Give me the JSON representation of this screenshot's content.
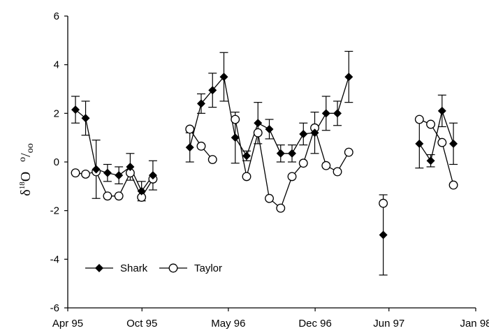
{
  "chart_data": {
    "type": "scatter",
    "ylabel": {
      "delta": "δ",
      "sup": "18",
      "element": "O",
      "unit_o1": "o",
      "unit_slash": "/",
      "unit_o2": "oo"
    },
    "ylim": [
      -6,
      6
    ],
    "y_ticks": [
      6,
      4,
      2,
      0,
      -2,
      -4,
      -6
    ],
    "x_range": [
      "1995-04-01",
      "1998-01-01"
    ],
    "x_ticks": [
      {
        "label": "Apr 95",
        "date": "1995-04-01"
      },
      {
        "label": "Oct 95",
        "date": "1995-10-01"
      },
      {
        "label": "May 96",
        "date": "1996-05-01"
      },
      {
        "label": "Dec 96",
        "date": "1996-12-01"
      },
      {
        "label": "Jun 97",
        "date": "1997-06-01"
      },
      {
        "label": "Jan 98",
        "date": "1998-01-01"
      }
    ],
    "legend_position": "bottom-left",
    "series": [
      {
        "name": "Shark",
        "marker": "filled-diamond",
        "segments": [
          [
            {
              "x": "1995-04-20",
              "y": 2.15,
              "err": 0.55
            },
            {
              "x": "1995-05-15",
              "y": 1.8,
              "err": 0.7
            },
            {
              "x": "1995-06-10",
              "y": -0.3,
              "err": 1.2
            },
            {
              "x": "1995-07-08",
              "y": -0.45,
              "err": 0.35
            },
            {
              "x": "1995-08-05",
              "y": -0.55,
              "err": 0.35
            },
            {
              "x": "1995-09-02",
              "y": -0.2,
              "err": 0.55
            },
            {
              "x": "1995-09-30",
              "y": -1.2,
              "err": 0.4
            },
            {
              "x": "1995-10-28",
              "y": -0.55,
              "err": 0.6
            }
          ],
          [
            {
              "x": "1996-01-27",
              "y": 0.6,
              "err": 0.6
            },
            {
              "x": "1996-02-24",
              "y": 2.4,
              "err": 0.4
            },
            {
              "x": "1996-03-23",
              "y": 2.95,
              "err": 0.7
            },
            {
              "x": "1996-04-20",
              "y": 3.5,
              "err": 1.0
            },
            {
              "x": "1996-05-18",
              "y": 1.0,
              "err": 1.05
            },
            {
              "x": "1996-06-15",
              "y": 0.25,
              "err": 0.2
            },
            {
              "x": "1996-07-13",
              "y": 1.6,
              "err": 0.85
            },
            {
              "x": "1996-08-10",
              "y": 1.35,
              "err": 0.4
            },
            {
              "x": "1996-09-07",
              "y": 0.35,
              "err": 0.35
            },
            {
              "x": "1996-10-05",
              "y": 0.35,
              "err": 0.35
            },
            {
              "x": "1996-11-02",
              "y": 1.15,
              "err": 0.45
            },
            {
              "x": "1996-11-30",
              "y": 1.2,
              "err": 0.85
            },
            {
              "x": "1996-12-28",
              "y": 2.0,
              "err": 0.7
            },
            {
              "x": "1997-01-25",
              "y": 2.0,
              "err": 0.5
            },
            {
              "x": "1997-02-22",
              "y": 3.5,
              "err": 1.05
            }
          ],
          [
            {
              "x": "1997-05-18",
              "y": -3.0,
              "err": 1.65
            }
          ],
          [
            {
              "x": "1997-08-15",
              "y": 0.75,
              "err": 1.0
            },
            {
              "x": "1997-09-12",
              "y": 0.05,
              "err": 0.25
            },
            {
              "x": "1997-10-10",
              "y": 2.1,
              "err": 0.65
            },
            {
              "x": "1997-11-07",
              "y": 0.75,
              "err": 0.85
            }
          ]
        ]
      },
      {
        "name": "Taylor",
        "marker": "open-circle",
        "segments": [
          [
            {
              "x": "1995-04-20",
              "y": -0.45
            },
            {
              "x": "1995-05-15",
              "y": -0.5
            },
            {
              "x": "1995-06-10",
              "y": -0.4
            },
            {
              "x": "1995-07-08",
              "y": -1.4
            },
            {
              "x": "1995-08-05",
              "y": -1.4
            },
            {
              "x": "1995-09-02",
              "y": -0.45
            },
            {
              "x": "1995-09-30",
              "y": -1.45
            },
            {
              "x": "1995-10-28",
              "y": -0.7
            }
          ],
          [
            {
              "x": "1996-01-27",
              "y": 1.35
            },
            {
              "x": "1996-02-24",
              "y": 0.65
            },
            {
              "x": "1996-03-23",
              "y": 0.1
            }
          ],
          [
            {
              "x": "1996-05-18",
              "y": 1.75
            },
            {
              "x": "1996-06-15",
              "y": -0.6
            },
            {
              "x": "1996-07-13",
              "y": 1.2
            },
            {
              "x": "1996-08-10",
              "y": -1.5
            },
            {
              "x": "1996-09-07",
              "y": -1.9
            },
            {
              "x": "1996-10-05",
              "y": -0.6
            },
            {
              "x": "1996-11-02",
              "y": -0.05
            },
            {
              "x": "1996-11-30",
              "y": 1.4
            },
            {
              "x": "1996-12-28",
              "y": -0.15
            },
            {
              "x": "1997-01-25",
              "y": -0.4
            },
            {
              "x": "1997-02-22",
              "y": 0.4
            }
          ],
          [
            {
              "x": "1997-05-18",
              "y": -1.7
            }
          ],
          [
            {
              "x": "1997-08-15",
              "y": 1.75
            },
            {
              "x": "1997-09-12",
              "y": 1.55
            },
            {
              "x": "1997-10-10",
              "y": 0.8
            },
            {
              "x": "1997-11-07",
              "y": -0.95
            }
          ]
        ]
      }
    ]
  }
}
